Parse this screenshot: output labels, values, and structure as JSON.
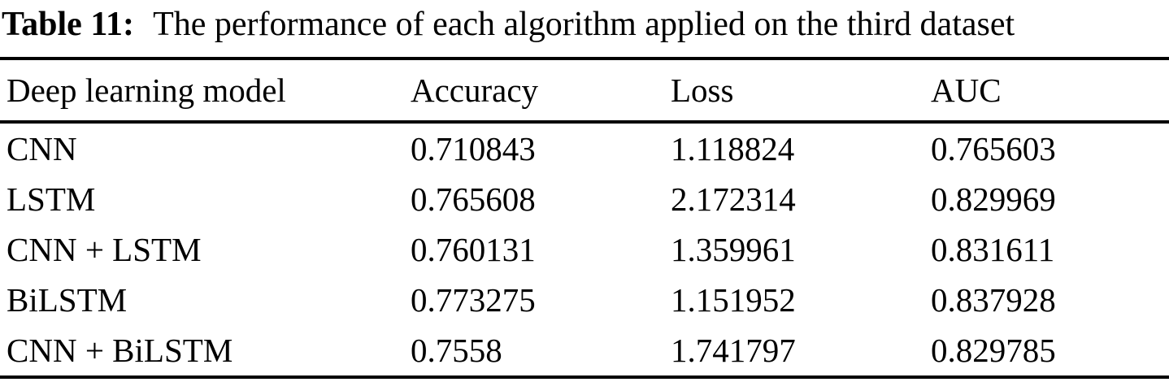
{
  "caption": {
    "label": "Table 11:",
    "text": "The performance of each algorithm applied on the third dataset"
  },
  "table": {
    "columns": [
      "Deep learning model",
      "Accuracy",
      "Loss",
      "AUC"
    ],
    "rows": [
      [
        "CNN",
        "0.710843",
        "1.118824",
        "0.765603"
      ],
      [
        "LSTM",
        "0.765608",
        "2.172314",
        "0.829969"
      ],
      [
        "CNN + LSTM",
        "0.760131",
        "1.359961",
        "0.831611"
      ],
      [
        "BiLSTM",
        "0.773275",
        "1.151952",
        "0.837928"
      ],
      [
        "CNN + BiLSTM",
        "0.7558",
        "1.741797",
        "0.829785"
      ]
    ]
  },
  "colors": {
    "text": "#000000",
    "background": "#ffffff",
    "rule": "#000000"
  },
  "chart_data": {
    "type": "table",
    "title": "Table 11: The performance of each algorithm applied on the third dataset",
    "columns": [
      "Deep learning model",
      "Accuracy",
      "Loss",
      "AUC"
    ],
    "rows": [
      {
        "model": "CNN",
        "accuracy": 0.710843,
        "loss": 1.118824,
        "auc": 0.765603
      },
      {
        "model": "LSTM",
        "accuracy": 0.765608,
        "loss": 2.172314,
        "auc": 0.829969
      },
      {
        "model": "CNN + LSTM",
        "accuracy": 0.760131,
        "loss": 1.359961,
        "auc": 0.831611
      },
      {
        "model": "BiLSTM",
        "accuracy": 0.773275,
        "loss": 1.151952,
        "auc": 0.837928
      },
      {
        "model": "CNN + BiLSTM",
        "accuracy": 0.7558,
        "loss": 1.741797,
        "auc": 0.829785
      }
    ]
  }
}
